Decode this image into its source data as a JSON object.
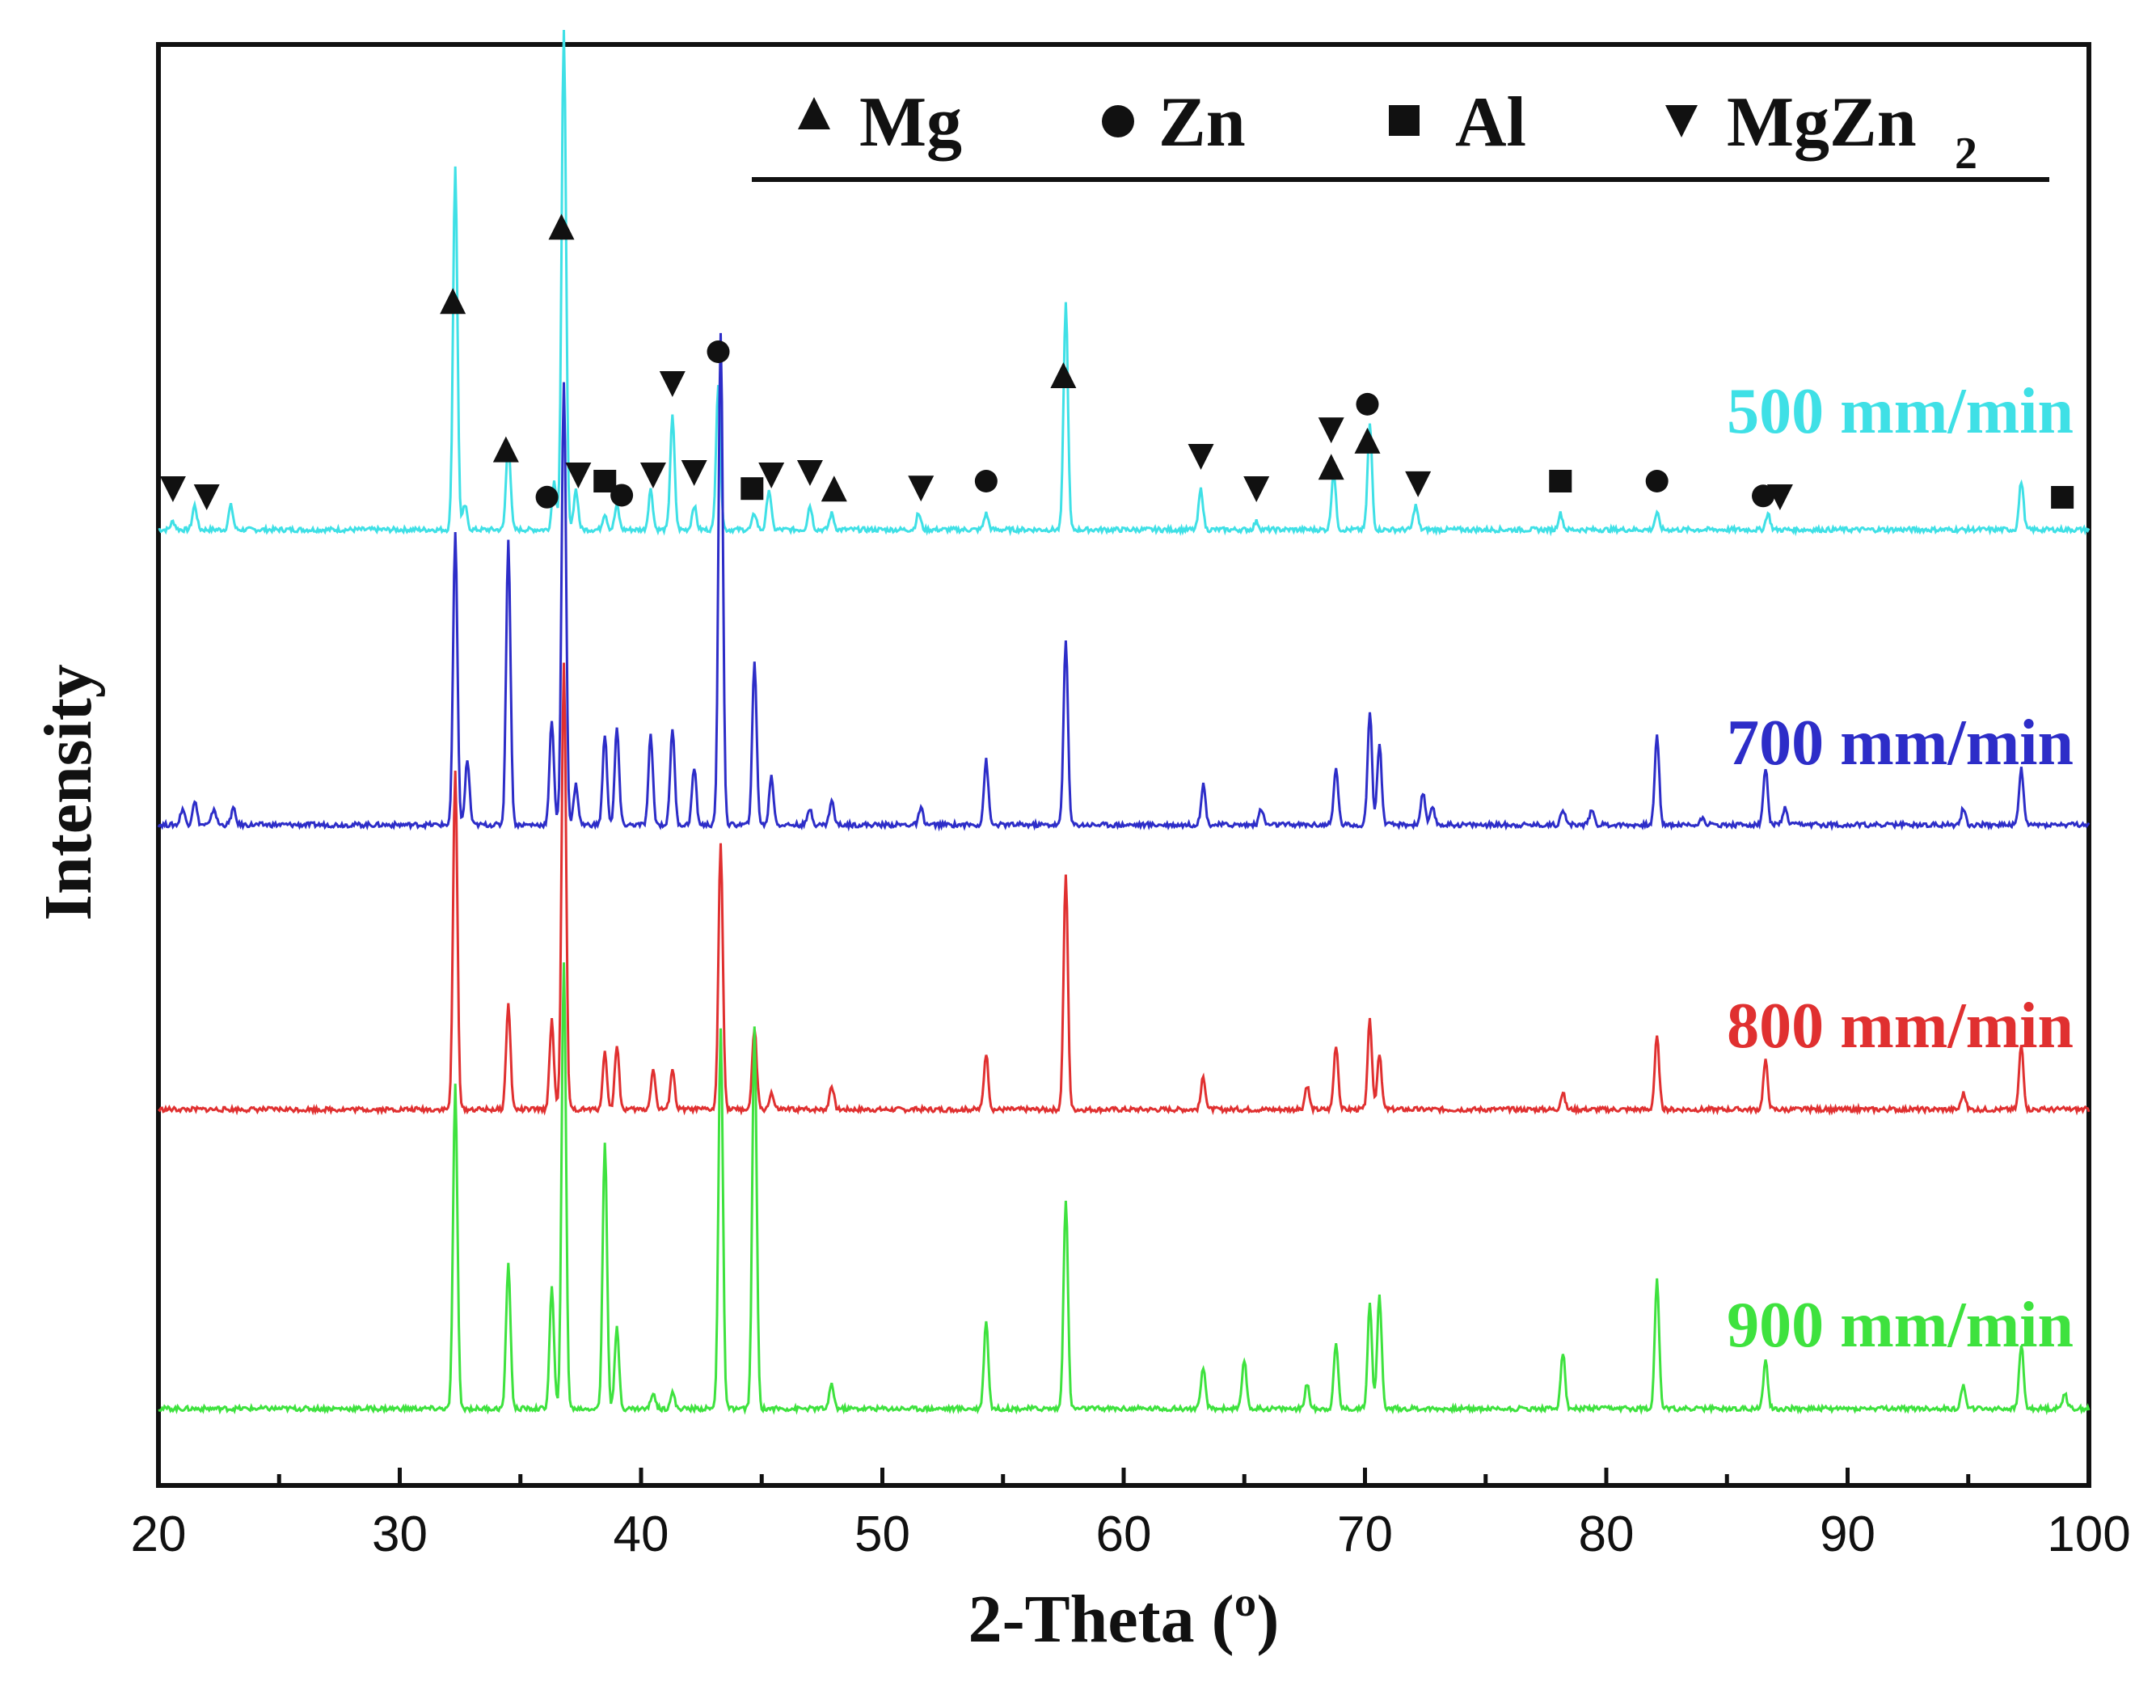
{
  "chart_data": {
    "type": "line",
    "title": "",
    "xlabel": "2-Theta (º)",
    "ylabel": "Intensity",
    "xlim": [
      20,
      100
    ],
    "xticks": [
      "20",
      "30",
      "40",
      "50",
      "60",
      "70",
      "80",
      "90",
      "100"
    ],
    "legend": {
      "placement": "top-right",
      "entries": [
        {
          "symbol": "triangle-up",
          "label": "Mg"
        },
        {
          "symbol": "circle",
          "label": "Zn"
        },
        {
          "symbol": "square",
          "label": "Al"
        },
        {
          "symbol": "triangle-down",
          "label": "MgZn",
          "subscript": "2"
        }
      ]
    },
    "series": [
      {
        "name": "500 mm/min",
        "color": "#3fe0e6",
        "peaks": [
          [
            20.6,
            0.01
          ],
          [
            21.5,
            0.03
          ],
          [
            23,
            0.03
          ],
          [
            32.3,
            0.45
          ],
          [
            32.7,
            0.03
          ],
          [
            34.5,
            0.11
          ],
          [
            36.4,
            0.06
          ],
          [
            36.8,
            0.62
          ],
          [
            37.3,
            0.05
          ],
          [
            38.5,
            0.02
          ],
          [
            39,
            0.03
          ],
          [
            40.4,
            0.05
          ],
          [
            41.3,
            0.14
          ],
          [
            42.2,
            0.03
          ],
          [
            43.2,
            0.18
          ],
          [
            44.7,
            0.02
          ],
          [
            45.3,
            0.05
          ],
          [
            47,
            0.03
          ],
          [
            47.9,
            0.02
          ],
          [
            51.5,
            0.02
          ],
          [
            54.3,
            0.02
          ],
          [
            57.6,
            0.28
          ],
          [
            63.2,
            0.05
          ],
          [
            65.5,
            0.01
          ],
          [
            68.7,
            0.07
          ],
          [
            70.2,
            0.13
          ],
          [
            72.1,
            0.03
          ],
          [
            78.1,
            0.02
          ],
          [
            82.1,
            0.02
          ],
          [
            86.7,
            0.02
          ],
          [
            97.2,
            0.06
          ]
        ]
      },
      {
        "name": "700 mm/min",
        "color": "#2d2dc8",
        "peaks": [
          [
            21,
            0.02
          ],
          [
            21.5,
            0.03
          ],
          [
            22.3,
            0.02
          ],
          [
            23.1,
            0.02
          ],
          [
            32.3,
            0.36
          ],
          [
            32.8,
            0.08
          ],
          [
            34.5,
            0.35
          ],
          [
            36.3,
            0.13
          ],
          [
            36.8,
            0.55
          ],
          [
            37.3,
            0.05
          ],
          [
            38.5,
            0.11
          ],
          [
            39,
            0.12
          ],
          [
            40.4,
            0.11
          ],
          [
            41.3,
            0.12
          ],
          [
            42.2,
            0.07
          ],
          [
            43.3,
            0.61
          ],
          [
            44.7,
            0.2
          ],
          [
            45.4,
            0.06
          ],
          [
            47,
            0.02
          ],
          [
            47.9,
            0.03
          ],
          [
            51.6,
            0.02
          ],
          [
            54.3,
            0.08
          ],
          [
            57.6,
            0.23
          ],
          [
            63.3,
            0.05
          ],
          [
            65.7,
            0.02
          ],
          [
            68.8,
            0.07
          ],
          [
            70.2,
            0.14
          ],
          [
            70.6,
            0.1
          ],
          [
            72.4,
            0.04
          ],
          [
            72.8,
            0.02
          ],
          [
            78.2,
            0.02
          ],
          [
            79.4,
            0.02
          ],
          [
            82.1,
            0.11
          ],
          [
            84,
            0.01
          ],
          [
            86.6,
            0.07
          ],
          [
            87.4,
            0.02
          ],
          [
            94.8,
            0.02
          ],
          [
            97.2,
            0.07
          ]
        ]
      },
      {
        "name": "800 mm/min",
        "color": "#e03030",
        "peaks": [
          [
            32.3,
            0.42
          ],
          [
            34.5,
            0.13
          ],
          [
            36.3,
            0.11
          ],
          [
            36.8,
            0.55
          ],
          [
            38.5,
            0.07
          ],
          [
            39,
            0.08
          ],
          [
            40.5,
            0.05
          ],
          [
            41.3,
            0.05
          ],
          [
            43.3,
            0.33
          ],
          [
            44.7,
            0.1
          ],
          [
            45.4,
            0.02
          ],
          [
            47.9,
            0.03
          ],
          [
            54.3,
            0.07
          ],
          [
            57.6,
            0.29
          ],
          [
            63.3,
            0.04
          ],
          [
            67.6,
            0.03
          ],
          [
            68.8,
            0.08
          ],
          [
            70.2,
            0.11
          ],
          [
            70.6,
            0.07
          ],
          [
            78.2,
            0.02
          ],
          [
            82.1,
            0.09
          ],
          [
            86.6,
            0.06
          ],
          [
            94.8,
            0.02
          ],
          [
            97.2,
            0.08
          ]
        ]
      },
      {
        "name": "900 mm/min",
        "color": "#3ee23e",
        "peaks": [
          [
            32.3,
            0.4
          ],
          [
            34.5,
            0.18
          ],
          [
            36.3,
            0.15
          ],
          [
            36.8,
            0.55
          ],
          [
            38.5,
            0.33
          ],
          [
            39,
            0.1
          ],
          [
            40.5,
            0.02
          ],
          [
            41.3,
            0.02
          ],
          [
            43.3,
            0.47
          ],
          [
            44.7,
            0.47
          ],
          [
            47.9,
            0.03
          ],
          [
            54.3,
            0.11
          ],
          [
            57.6,
            0.26
          ],
          [
            63.3,
            0.05
          ],
          [
            65,
            0.06
          ],
          [
            67.6,
            0.03
          ],
          [
            68.8,
            0.08
          ],
          [
            70.2,
            0.13
          ],
          [
            70.6,
            0.14
          ],
          [
            78.2,
            0.07
          ],
          [
            82.1,
            0.16
          ],
          [
            86.6,
            0.06
          ],
          [
            94.8,
            0.03
          ],
          [
            97.2,
            0.08
          ],
          [
            99,
            0.02
          ]
        ]
      }
    ],
    "phase_markers": [
      {
        "phase": "Mg",
        "symbol": "triangle-up",
        "x": [
          32.2,
          36.7,
          34.4,
          48,
          57.5,
          68.6,
          70.1
        ]
      },
      {
        "phase": "Zn",
        "symbol": "circle",
        "x": [
          36.1,
          39.2,
          43.2,
          54.3,
          70.1,
          82.1,
          86.5
        ]
      },
      {
        "phase": "Al",
        "symbol": "square",
        "x": [
          38.5,
          44.6,
          78.1,
          98.9
        ]
      },
      {
        "phase": "MgZn2",
        "symbol": "triangle-down",
        "x": [
          20.6,
          22,
          37.4,
          40.5,
          41.3,
          42.2,
          45.4,
          47,
          51.6,
          63.2,
          65.5,
          68.6,
          72.2,
          87.2
        ]
      }
    ]
  }
}
